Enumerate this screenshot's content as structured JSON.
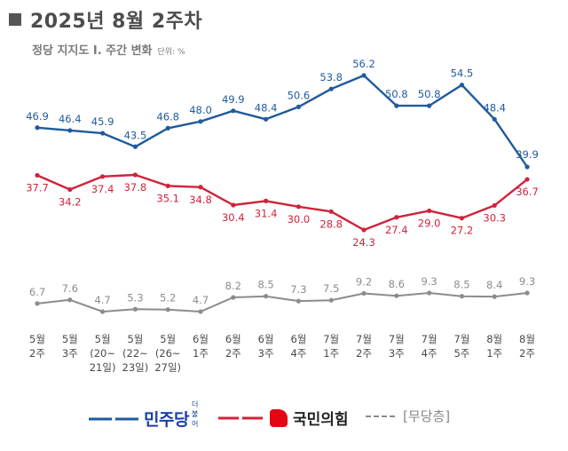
{
  "header": {
    "title": "2025년 8월 2주차",
    "subtitle": "정당 지지도 Ⅰ. 주간 변화",
    "unit": "단위: %"
  },
  "colors": {
    "democratic": "#1f5b9c",
    "ppp": "#d1233b",
    "independent": "#8c8c8c",
    "axis_text": "#4a4a4a"
  },
  "chart_data": {
    "type": "line",
    "categories": [
      [
        "5월",
        "2주"
      ],
      [
        "5월",
        "3주"
      ],
      [
        "5월",
        "(20~",
        "21일)"
      ],
      [
        "5월",
        "(22~",
        "23일)"
      ],
      [
        "5월",
        "(26~",
        "27일)"
      ],
      [
        "6월",
        "1주"
      ],
      [
        "6월",
        "2주"
      ],
      [
        "6월",
        "3주"
      ],
      [
        "6월",
        "4주"
      ],
      [
        "7월",
        "1주"
      ],
      [
        "7월",
        "2주"
      ],
      [
        "7월",
        "3주"
      ],
      [
        "7월",
        "4주"
      ],
      [
        "7월",
        "5주"
      ],
      [
        "8월",
        "1주"
      ],
      [
        "8월",
        "2주"
      ]
    ],
    "series": [
      {
        "name": "더불어 민주당",
        "color_key": "democratic",
        "values": [
          46.9,
          46.4,
          45.9,
          43.5,
          46.8,
          48.0,
          49.9,
          48.4,
          50.6,
          53.8,
          56.2,
          50.8,
          50.8,
          54.5,
          48.4,
          39.9
        ],
        "labels": [
          "46.9",
          "46.4",
          "45.9",
          "43.5",
          "46.8",
          "48.0",
          "49.9",
          "48.4",
          "50.6",
          "53.8",
          "56.2",
          "50.8",
          "50.8",
          "54.5",
          "48.4",
          "39.9"
        ]
      },
      {
        "name": "국민의힘",
        "color_key": "ppp",
        "values": [
          37.7,
          34.2,
          37.4,
          37.8,
          35.1,
          34.8,
          30.4,
          31.4,
          30.0,
          28.8,
          24.3,
          27.4,
          29.0,
          27.2,
          30.3,
          36.7
        ],
        "labels": [
          "37.7",
          "34.2",
          "37.4",
          "37.8",
          "35.1",
          "34.8",
          "30.4",
          "31.4",
          "30.0",
          "28.8",
          "24.3",
          "27.4",
          "29.0",
          "27.2",
          "30.3",
          "36.7"
        ]
      },
      {
        "name": "[무당층]",
        "color_key": "independent",
        "values": [
          6.7,
          7.6,
          4.7,
          5.3,
          5.2,
          4.7,
          8.2,
          8.5,
          7.3,
          7.5,
          9.2,
          8.6,
          9.3,
          8.5,
          8.4,
          9.3
        ],
        "labels": [
          "6.7",
          "7.6",
          "4.7",
          "5.3",
          "5.2",
          "4.7",
          "8.2",
          "8.5",
          "7.3",
          "7.5",
          "9.2",
          "8.6",
          "9.3",
          "8.5",
          "8.4",
          "9.3"
        ]
      }
    ]
  },
  "legend": {
    "democratic_top": "더불어",
    "democratic": "민주당",
    "ppp": "국민의힘",
    "independent": "[무당층]"
  }
}
